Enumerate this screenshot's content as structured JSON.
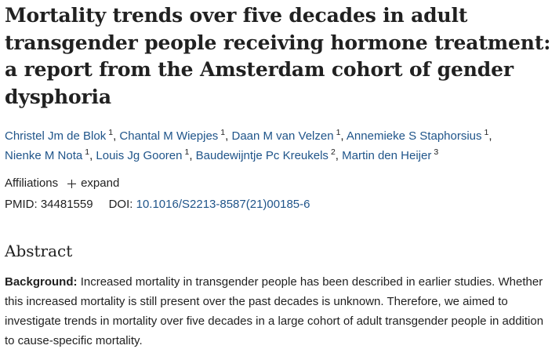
{
  "article": {
    "title": "Mortality trends over five decades in adult transgender people receiving hormone treatment: a report from the Amsterdam cohort of gender dysphoria",
    "authors": [
      {
        "name": "Christel Jm de Blok",
        "sup": "1"
      },
      {
        "name": "Chantal M Wiepjes",
        "sup": "1"
      },
      {
        "name": "Daan M van Velzen",
        "sup": "1"
      },
      {
        "name": "Annemieke S Staphorsius",
        "sup": "1"
      },
      {
        "name": "Nienke M Nota",
        "sup": "1"
      },
      {
        "name": "Louis Jg Gooren",
        "sup": "1"
      },
      {
        "name": "Baudewijntje Pc Kreukels",
        "sup": "2"
      },
      {
        "name": "Martin den Heijer",
        "sup": "3"
      }
    ],
    "affiliations_label": "Affiliations",
    "expand_label": "expand",
    "pmid_label": "PMID:",
    "pmid_value": "34481559",
    "doi_label": "DOI:",
    "doi_value": "10.1016/S2213-8587(21)00185-6"
  },
  "abstract": {
    "heading": "Abstract",
    "background_label": "Background:",
    "background_text": "Increased mortality in transgender people has been described in earlier studies. Whether this increased mortality is still present over the past decades is unknown. Therefore, we aimed to investigate trends in mortality over five decades in a large cohort of adult transgender people in addition to cause-specific mortality."
  },
  "colors": {
    "text": "#212121",
    "link": "#20558a"
  }
}
